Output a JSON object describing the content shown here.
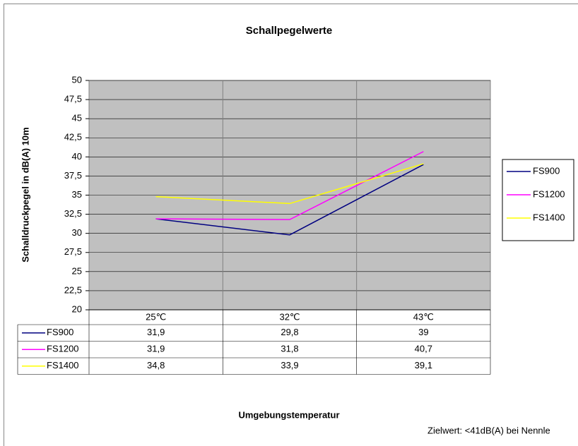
{
  "chart_data": {
    "type": "line",
    "title": "Schallpegelwerte",
    "y_label": "Schalldruckpegel in dB(A) 10m",
    "x_label": "Umgebungstemperatur",
    "annotation": "Zielwert: <41dB(A) bei Nennle",
    "categories": [
      "25℃",
      "32℃",
      "43℃"
    ],
    "series": [
      {
        "name": "FS900",
        "color": "#000080",
        "values": [
          31.9,
          29.8,
          39
        ],
        "value_labels": [
          "31,9",
          "29,8",
          "39"
        ]
      },
      {
        "name": "FS1200",
        "color": "#ff00ff",
        "values": [
          31.9,
          31.8,
          40.7
        ],
        "value_labels": [
          "31,9",
          "31,8",
          "40,7"
        ]
      },
      {
        "name": "FS1400",
        "color": "#ffff00",
        "values": [
          34.8,
          33.9,
          39.1
        ],
        "value_labels": [
          "34,8",
          "33,9",
          "39,1"
        ]
      }
    ],
    "ylim": [
      20,
      50
    ],
    "yticks": [
      20,
      {
        "value": 22.5,
        "label": "22,5"
      },
      25,
      {
        "value": 27.5,
        "label": "27,5"
      },
      30,
      {
        "value": 32.5,
        "label": "32,5"
      },
      35,
      {
        "value": 37.5,
        "label": "37,5"
      },
      40,
      {
        "value": 42.5,
        "label": "42,5"
      },
      45,
      {
        "value": 47.5,
        "label": "47,5"
      },
      50
    ],
    "grid": true,
    "legend": "right",
    "data_table": true
  }
}
